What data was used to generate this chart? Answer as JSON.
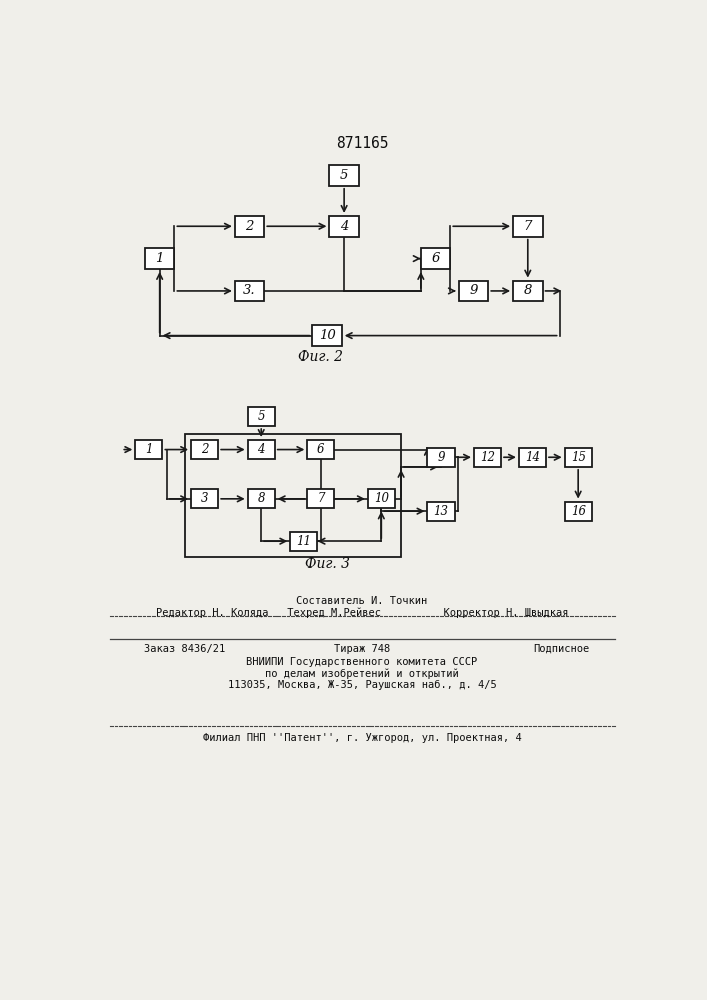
{
  "title": "871165",
  "fig1_label": "Фиг. 2",
  "fig2_label": "Фиг. 3",
  "background_color": "#f0efea",
  "box_color": "#ffffff",
  "box_edge_color": "#1a1a1a",
  "line_color": "#1a1a1a",
  "text_color": "#0d0d0d",
  "footer_sestavitel": "Составитель И. Точкин",
  "footer_row2": "Редактор Н. Коляда   Техред М.Рейвес          Корректор Н. Швыдкая",
  "footer_zakaz": "Заказ 8436/21",
  "footer_tirazh": "Тираж 748",
  "footer_podpisnoe": "Подписное",
  "footer_vniip1": "ВНИИПИ Государственного комитета СССР",
  "footer_vniip2": "по делам изобретений и открытий",
  "footer_vniip3": "113035, Москва, Ж-35, Раушская наб., д. 4/5",
  "footer_filial": "Филиал ПНП ''Патент'', г. Ужгород, ул. Проектная, 4"
}
